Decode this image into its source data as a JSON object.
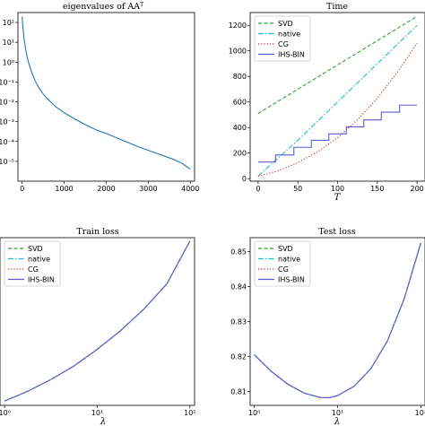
{
  "chart_data": [
    {
      "id": "eigen",
      "type": "line",
      "title": "eigenvalues of AA",
      "title_superscript": "T",
      "xlabel": "",
      "ylabel": "",
      "xlim": [
        -100,
        4100
      ],
      "ylim": [
        -6.0,
        2.5
      ],
      "yscale": "log",
      "xticks": [
        0,
        1000,
        2000,
        3000,
        4000
      ],
      "xtick_labels": [
        "0",
        "1000",
        "2000",
        "3000",
        "4000"
      ],
      "yticks": [
        -5,
        -4,
        -3,
        -2,
        -1,
        0,
        1,
        2
      ],
      "ytick_labels": [
        "10⁻⁵",
        "10⁻⁴",
        "10⁻³",
        "10⁻²",
        "10⁻¹",
        "10⁰",
        "10¹",
        "10²"
      ],
      "grid": false,
      "legend": null,
      "series": [
        {
          "color": "#1f77b4",
          "style": "solid",
          "x": [
            0,
            20,
            50,
            100,
            150,
            200,
            300,
            400,
            500,
            600,
            700,
            800,
            1000,
            1200,
            1500,
            1800,
            2000,
            2400,
            2800,
            3200,
            3600,
            3800,
            3900,
            4000
          ],
          "log10_y": [
            2.3,
            1.7,
            1.1,
            0.45,
            0.0,
            -0.35,
            -0.9,
            -1.3,
            -1.6,
            -1.85,
            -2.05,
            -2.25,
            -2.55,
            -2.8,
            -3.15,
            -3.45,
            -3.6,
            -3.95,
            -4.3,
            -4.6,
            -4.9,
            -5.1,
            -5.25,
            -5.4
          ]
        }
      ]
    },
    {
      "id": "time",
      "type": "line",
      "title": "Time",
      "xlabel": "T",
      "ylabel": "",
      "xlim": [
        -10,
        210
      ],
      "ylim": [
        -20,
        1300
      ],
      "xticks": [
        0,
        50,
        100,
        150,
        200
      ],
      "xtick_labels": [
        "0",
        "50",
        "100",
        "150",
        "200"
      ],
      "yticks": [
        0,
        200,
        400,
        600,
        800,
        1000,
        1200
      ],
      "ytick_labels": [
        "0",
        "200",
        "400",
        "600",
        "800",
        "1000",
        "1200"
      ],
      "grid": false,
      "legend": "upper-left",
      "series": [
        {
          "name": "SVD",
          "color": "#2ca02c",
          "style": "dashed",
          "x": [
            0,
            200
          ],
          "y": [
            510,
            1270
          ]
        },
        {
          "name": "native",
          "color": "#17becf",
          "style": "dashdot",
          "x": [
            0,
            50,
            100,
            150,
            200
          ],
          "y": [
            20,
            300,
            600,
            900,
            1200
          ]
        },
        {
          "name": "CG",
          "color": "#d62728",
          "style": "dotted",
          "x": [
            0,
            25,
            50,
            75,
            100,
            125,
            150,
            175,
            200
          ],
          "y": [
            20,
            60,
            125,
            210,
            320,
            460,
            630,
            830,
            1060
          ]
        },
        {
          "name": "IHS-BIN",
          "color": "#5b5bd6",
          "style": "solid",
          "x": [
            0,
            22,
            22,
            45,
            45,
            67,
            67,
            89,
            89,
            111,
            111,
            133,
            133,
            155,
            155,
            178,
            178,
            200
          ],
          "y": [
            130,
            130,
            185,
            185,
            245,
            245,
            300,
            300,
            350,
            350,
            405,
            405,
            460,
            460,
            520,
            520,
            575,
            575
          ]
        }
      ]
    },
    {
      "id": "train",
      "type": "line",
      "title": "Train loss",
      "xlabel": "λ",
      "ylabel": "",
      "xscale": "log",
      "xlim_log10": [
        -0.05,
        2.05
      ],
      "ylim": [
        0.7415,
        0.9135
      ],
      "xticks_log10": [
        0,
        1,
        2
      ],
      "xtick_labels": [
        "10⁰",
        "10¹",
        "10²"
      ],
      "yticks": [
        0.75,
        0.775,
        0.8,
        0.825,
        0.85,
        0.875,
        0.9
      ],
      "ytick_labels": [
        "0.750",
        "0.775",
        "0.800",
        "0.825",
        "0.850",
        "0.875",
        "0.900"
      ],
      "grid": false,
      "legend": "upper-left",
      "series": [
        {
          "name": "SVD",
          "color": "#2ca02c",
          "style": "dashed",
          "log10_x": [
            0,
            0.25,
            0.5,
            0.75,
            1.0,
            1.25,
            1.5,
            1.75,
            2.0
          ],
          "y": [
            0.746,
            0.756,
            0.768,
            0.782,
            0.799,
            0.818,
            0.84,
            0.866,
            0.91
          ]
        },
        {
          "name": "native",
          "color": "#17becf",
          "style": "dashdot",
          "log10_x": [
            0,
            0.25,
            0.5,
            0.75,
            1.0,
            1.25,
            1.5,
            1.75,
            2.0
          ],
          "y": [
            0.746,
            0.756,
            0.768,
            0.782,
            0.799,
            0.818,
            0.84,
            0.866,
            0.91
          ]
        },
        {
          "name": "CG",
          "color": "#d62728",
          "style": "dotted",
          "log10_x": [
            0,
            0.25,
            0.5,
            0.75,
            1.0,
            1.25,
            1.5,
            1.75,
            2.0
          ],
          "y": [
            0.746,
            0.756,
            0.768,
            0.782,
            0.799,
            0.818,
            0.84,
            0.866,
            0.91
          ]
        },
        {
          "name": "IHS-BIN",
          "color": "#5b5bd6",
          "style": "solid",
          "log10_x": [
            0,
            0.25,
            0.5,
            0.75,
            1.0,
            1.25,
            1.5,
            1.75,
            2.0
          ],
          "y": [
            0.746,
            0.756,
            0.768,
            0.782,
            0.799,
            0.818,
            0.84,
            0.866,
            0.91
          ]
        }
      ]
    },
    {
      "id": "test",
      "type": "line",
      "title": "Test loss",
      "xlabel": "λ",
      "ylabel": "",
      "xscale": "log",
      "xlim_log10": [
        -0.05,
        2.05
      ],
      "ylim": [
        0.806,
        0.854
      ],
      "xticks_log10": [
        0,
        1,
        2
      ],
      "xtick_labels": [
        "10⁰",
        "10¹",
        "10²"
      ],
      "yticks": [
        0.81,
        0.82,
        0.83,
        0.84,
        0.85
      ],
      "ytick_labels": [
        "0.81",
        "0.82",
        "0.83",
        "0.84",
        "0.85"
      ],
      "grid": false,
      "legend": "upper-left",
      "series": [
        {
          "name": "SVD",
          "color": "#2ca02c",
          "style": "dashed",
          "log10_x": [
            0,
            0.2,
            0.4,
            0.6,
            0.8,
            0.9,
            1.0,
            1.2,
            1.4,
            1.6,
            1.8,
            2.0
          ],
          "y": [
            0.8205,
            0.8158,
            0.8121,
            0.8095,
            0.8082,
            0.8082,
            0.8088,
            0.8115,
            0.8165,
            0.8245,
            0.8365,
            0.8525
          ]
        },
        {
          "name": "native",
          "color": "#17becf",
          "style": "dashdot",
          "log10_x": [
            0,
            0.2,
            0.4,
            0.6,
            0.8,
            0.9,
            1.0,
            1.2,
            1.4,
            1.6,
            1.8,
            2.0
          ],
          "y": [
            0.8205,
            0.8158,
            0.8121,
            0.8095,
            0.8082,
            0.8082,
            0.8088,
            0.8115,
            0.8165,
            0.8245,
            0.8365,
            0.8525
          ]
        },
        {
          "name": "CG",
          "color": "#d62728",
          "style": "dotted",
          "log10_x": [
            0,
            0.2,
            0.4,
            0.6,
            0.8,
            0.9,
            1.0,
            1.2,
            1.4,
            1.6,
            1.8,
            2.0
          ],
          "y": [
            0.8205,
            0.8158,
            0.8121,
            0.8095,
            0.8082,
            0.8082,
            0.8088,
            0.8115,
            0.8165,
            0.8245,
            0.8365,
            0.8525
          ]
        },
        {
          "name": "IHS-BIN",
          "color": "#5b5bd6",
          "style": "solid",
          "log10_x": [
            0,
            0.2,
            0.4,
            0.6,
            0.8,
            0.9,
            1.0,
            1.2,
            1.4,
            1.6,
            1.8,
            2.0
          ],
          "y": [
            0.8205,
            0.8158,
            0.8121,
            0.8095,
            0.8082,
            0.8082,
            0.8088,
            0.8115,
            0.8165,
            0.8245,
            0.8365,
            0.8525
          ]
        }
      ]
    }
  ]
}
